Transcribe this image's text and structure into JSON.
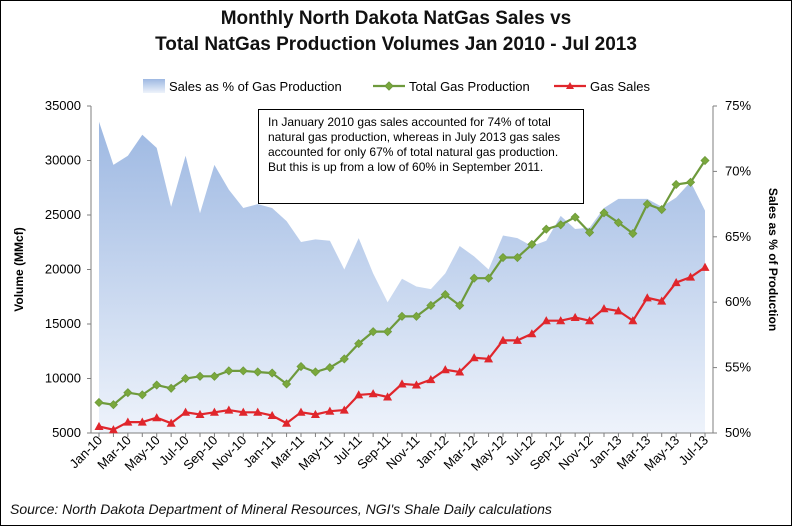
{
  "title_line1": "Monthly North Dakota NatGas Sales vs",
  "title_line2": "Total NatGas Production Volumes Jan 2010 - Jul 2013",
  "source": "Source: North Dakota Department of Mineral Resources, NGI's Shale Daily calculations",
  "annotation": "In January 2010 gas sales accounted for 74% of total natural gas production, whereas in July 2013 gas sales accounted for only 67% of total natural gas production. But this is up from a low of 60% in September 2011.",
  "colors": {
    "area_top": "#9db8e2",
    "area_bottom": "#eef3fb",
    "production": "#6e9a3c",
    "production_marker": "#7aa83c",
    "sales": "#e0262c",
    "grid": "#c8c8c8"
  },
  "chart_data": {
    "type": "line",
    "legend_position": "top",
    "grid": false,
    "xlabel": "",
    "ylabel": "Volume (MMcf)",
    "y2label": "Sales as % of Production",
    "ylim": [
      5000,
      35000
    ],
    "y2lim": [
      50,
      75
    ],
    "yticks": [
      5000,
      10000,
      15000,
      20000,
      25000,
      30000,
      35000
    ],
    "yticklabels": [
      "5000",
      "10000",
      "15000",
      "20000",
      "25000",
      "30000",
      "35000"
    ],
    "y2ticks": [
      50,
      55,
      60,
      65,
      70,
      75
    ],
    "y2ticklabels": [
      "50%",
      "55%",
      "60%",
      "65%",
      "70%",
      "75%"
    ],
    "x": [
      "Jan-10",
      "Feb-10",
      "Mar-10",
      "Apr-10",
      "May-10",
      "Jun-10",
      "Jul-10",
      "Aug-10",
      "Sep-10",
      "Oct-10",
      "Nov-10",
      "Dec-10",
      "Jan-11",
      "Feb-11",
      "Mar-11",
      "Apr-11",
      "May-11",
      "Jun-11",
      "Jul-11",
      "Aug-11",
      "Sep-11",
      "Oct-11",
      "Nov-11",
      "Dec-11",
      "Jan-12",
      "Feb-12",
      "Mar-12",
      "Apr-12",
      "May-12",
      "Jun-12",
      "Jul-12",
      "Aug-12",
      "Sep-12",
      "Oct-12",
      "Nov-12",
      "Dec-12",
      "Jan-13",
      "Feb-13",
      "Mar-13",
      "Apr-13",
      "May-13",
      "Jun-13",
      "Jul-13"
    ],
    "xticklabels": [
      "Jan-10",
      "Mar-10",
      "May-10",
      "Jul-10",
      "Sep-10",
      "Nov-10",
      "Jan-11",
      "Mar-11",
      "May-11",
      "Jul-11",
      "Sep-11",
      "Nov-11",
      "Jan-12",
      "Mar-12",
      "May-12",
      "Jul-12",
      "Sep-12",
      "Nov-12",
      "Jan-13",
      "Mar-13",
      "May-13",
      "Jul-13"
    ],
    "series": [
      {
        "name": "Sales as % of Gas Production",
        "type": "area",
        "axis": "right",
        "values": [
          73.8,
          70.5,
          71.2,
          72.8,
          71.8,
          67.3,
          71.2,
          66.8,
          70.5,
          68.6,
          67.2,
          67.5,
          67.2,
          66.2,
          64.6,
          64.8,
          64.7,
          62.5,
          64.9,
          62.2,
          60.0,
          61.8,
          61.2,
          61.0,
          62.2,
          64.3,
          63.5,
          62.5,
          65.1,
          64.9,
          64.3,
          64.7,
          66.6,
          65.6,
          65.7,
          67.2,
          67.9,
          67.9,
          67.9,
          67.3,
          68.0,
          69.2,
          67.0
        ]
      },
      {
        "name": "Total Gas Production",
        "type": "line",
        "axis": "left",
        "values": [
          7800,
          7600,
          8700,
          8500,
          9400,
          9100,
          10000,
          10200,
          10200,
          10700,
          10700,
          10600,
          10500,
          9500,
          11100,
          10600,
          11000,
          11800,
          13200,
          14300,
          14300,
          15700,
          15700,
          16700,
          17700,
          16700,
          19200,
          19200,
          21100,
          21100,
          22300,
          23700,
          24100,
          24800,
          23400,
          25200,
          24300,
          23300,
          26000,
          25500,
          27800,
          28000,
          30000
        ]
      },
      {
        "name": "Gas Sales",
        "type": "line",
        "axis": "left",
        "values": [
          5600,
          5300,
          6000,
          6000,
          6400,
          5900,
          6900,
          6700,
          6900,
          7100,
          6900,
          6900,
          6600,
          5900,
          6900,
          6700,
          7000,
          7100,
          8500,
          8600,
          8300,
          9500,
          9400,
          9900,
          10800,
          10600,
          11900,
          11800,
          13500,
          13500,
          14100,
          15300,
          15300,
          15600,
          15300,
          16400,
          16200,
          15300,
          17400,
          17100,
          18800,
          19300,
          20200
        ]
      }
    ]
  }
}
